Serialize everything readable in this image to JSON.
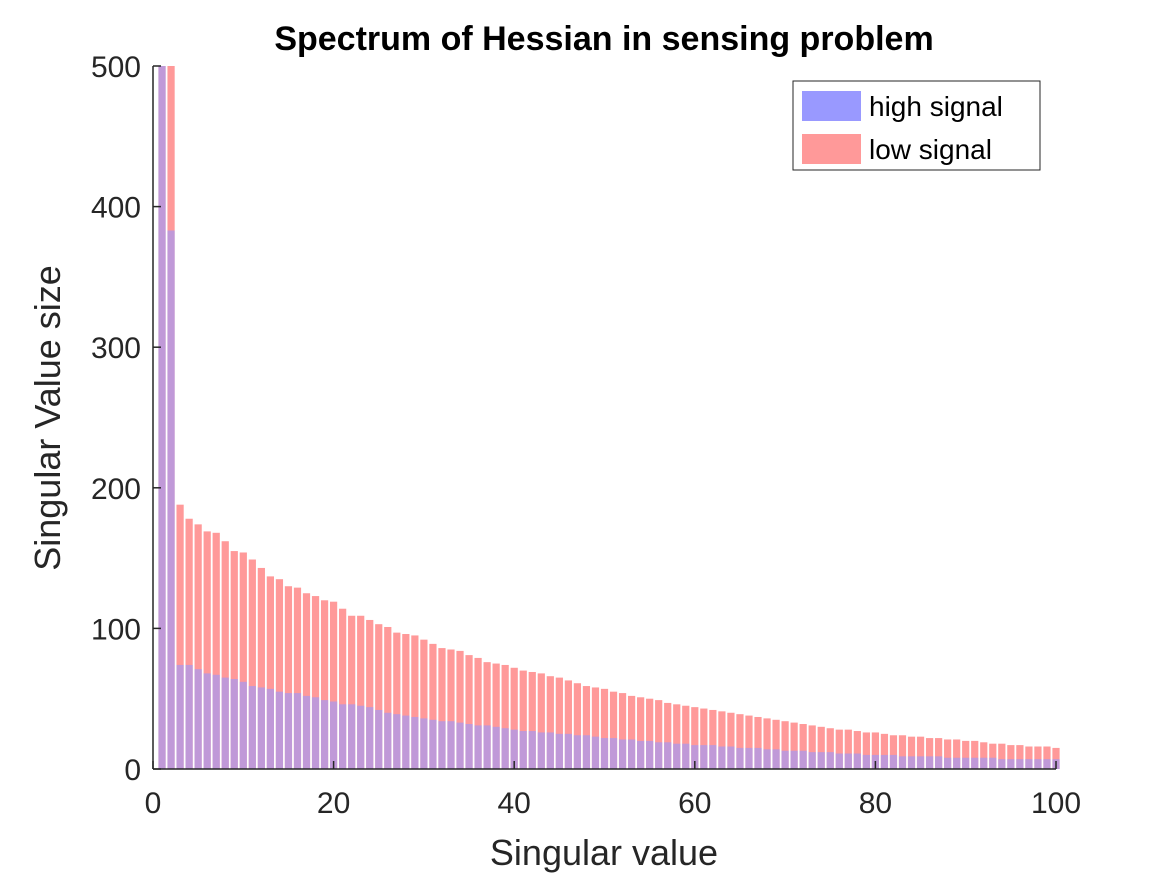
{
  "chart_data": {
    "type": "bar",
    "title": "Spectrum of Hessian in sensing problem",
    "xlabel": "Singular value",
    "ylabel": "Singular Value size",
    "xlim": [
      0,
      100
    ],
    "ylim": [
      0,
      500
    ],
    "xticks": [
      0,
      20,
      40,
      60,
      80,
      100
    ],
    "yticks": [
      0,
      100,
      200,
      300,
      400,
      500
    ],
    "grid": false,
    "legend_position": "top-right",
    "x": [
      1,
      2,
      3,
      4,
      5,
      6,
      7,
      8,
      9,
      10,
      11,
      12,
      13,
      14,
      15,
      16,
      17,
      18,
      19,
      20,
      21,
      22,
      23,
      24,
      25,
      26,
      27,
      28,
      29,
      30,
      31,
      32,
      33,
      34,
      35,
      36,
      37,
      38,
      39,
      40,
      41,
      42,
      43,
      44,
      45,
      46,
      47,
      48,
      49,
      50,
      51,
      52,
      53,
      54,
      55,
      56,
      57,
      58,
      59,
      60,
      61,
      62,
      63,
      64,
      65,
      66,
      67,
      68,
      69,
      70,
      71,
      72,
      73,
      74,
      75,
      76,
      77,
      78,
      79,
      80,
      81,
      82,
      83,
      84,
      85,
      86,
      87,
      88,
      89,
      90,
      91,
      92,
      93,
      94,
      95,
      96,
      97,
      98,
      99,
      100
    ],
    "series": [
      {
        "name": "low signal",
        "color": "#ff9999",
        "values": [
          500,
          500,
          188,
          178,
          174,
          169,
          168,
          162,
          155,
          154,
          149,
          143,
          137,
          135,
          130,
          129,
          125,
          123,
          120,
          119,
          114,
          109,
          109,
          106,
          103,
          101,
          97,
          96,
          95,
          92,
          89,
          86,
          85,
          84,
          81,
          79,
          76,
          75,
          74,
          72,
          70,
          69,
          68,
          66,
          65,
          63,
          61,
          59,
          58,
          57,
          55,
          54,
          52,
          51,
          50,
          49,
          47,
          46,
          45,
          44,
          43,
          42,
          41,
          40,
          39,
          38,
          37,
          36,
          35,
          34,
          33,
          32,
          31,
          30,
          29,
          28,
          28,
          27,
          26,
          26,
          25,
          24,
          24,
          23,
          23,
          22,
          22,
          21,
          21,
          20,
          20,
          19,
          18,
          18,
          17,
          17,
          16,
          16,
          16,
          15
        ]
      },
      {
        "name": "high signal",
        "color": "#9999ff",
        "values": [
          500,
          383,
          74,
          74,
          71,
          68,
          67,
          65,
          64,
          62,
          59,
          58,
          57,
          55,
          54,
          54,
          52,
          51,
          49,
          48,
          46,
          46,
          45,
          44,
          42,
          40,
          39,
          38,
          37,
          36,
          35,
          34,
          34,
          33,
          32,
          31,
          31,
          30,
          29,
          28,
          27,
          27,
          26,
          26,
          25,
          25,
          24,
          24,
          23,
          22,
          22,
          21,
          21,
          20,
          20,
          19,
          19,
          18,
          18,
          17,
          17,
          17,
          16,
          16,
          15,
          15,
          15,
          14,
          14,
          13,
          13,
          13,
          12,
          12,
          12,
          11,
          11,
          11,
          10,
          10,
          10,
          10,
          9,
          9,
          9,
          9,
          9,
          8,
          8,
          8,
          8,
          8,
          8,
          7,
          7,
          7,
          7,
          7,
          7,
          7
        ]
      }
    ]
  }
}
